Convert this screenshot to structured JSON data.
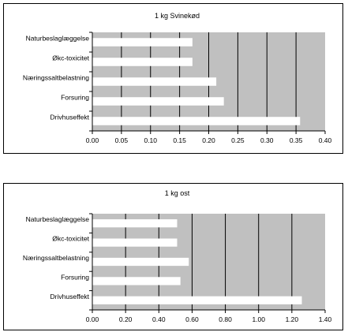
{
  "chart_data": [
    {
      "type": "bar",
      "orientation": "horizontal",
      "title": "1 kg Svinekød",
      "categories": [
        "Naturbeslaglæggelse",
        "Økc-toxicitet",
        "Næringssaltbelastning",
        "Forsuring",
        "Drivhuseffekt"
      ],
      "values": [
        0.172,
        0.172,
        0.213,
        0.226,
        0.357
      ],
      "xlim": [
        0,
        0.4
      ],
      "ticks": [
        "0.00",
        "0.05",
        "0.10",
        "0.15",
        "0.20",
        "0.25",
        "0.30",
        "0.35",
        "0.40"
      ],
      "grid": true,
      "colors": {
        "plot_bg": "#c0c0c0",
        "bar": "#ffffff",
        "grid": "#000000"
      }
    },
    {
      "type": "bar",
      "orientation": "horizontal",
      "title": "1 kg ost",
      "categories": [
        "Naturbeslaglæggelse",
        "Økc-toxicitet",
        "Næringssaltbelastning",
        "Forsuring",
        "Drivhuseffekt"
      ],
      "values": [
        0.51,
        0.51,
        0.58,
        0.53,
        1.26
      ],
      "xlim": [
        0,
        1.4
      ],
      "ticks": [
        "0.00",
        "0.20",
        "0.40",
        "0.60",
        "0.80",
        "1.00",
        "1.20",
        "1.40"
      ],
      "grid": true,
      "colors": {
        "plot_bg": "#c0c0c0",
        "bar": "#ffffff",
        "grid": "#000000"
      }
    }
  ]
}
